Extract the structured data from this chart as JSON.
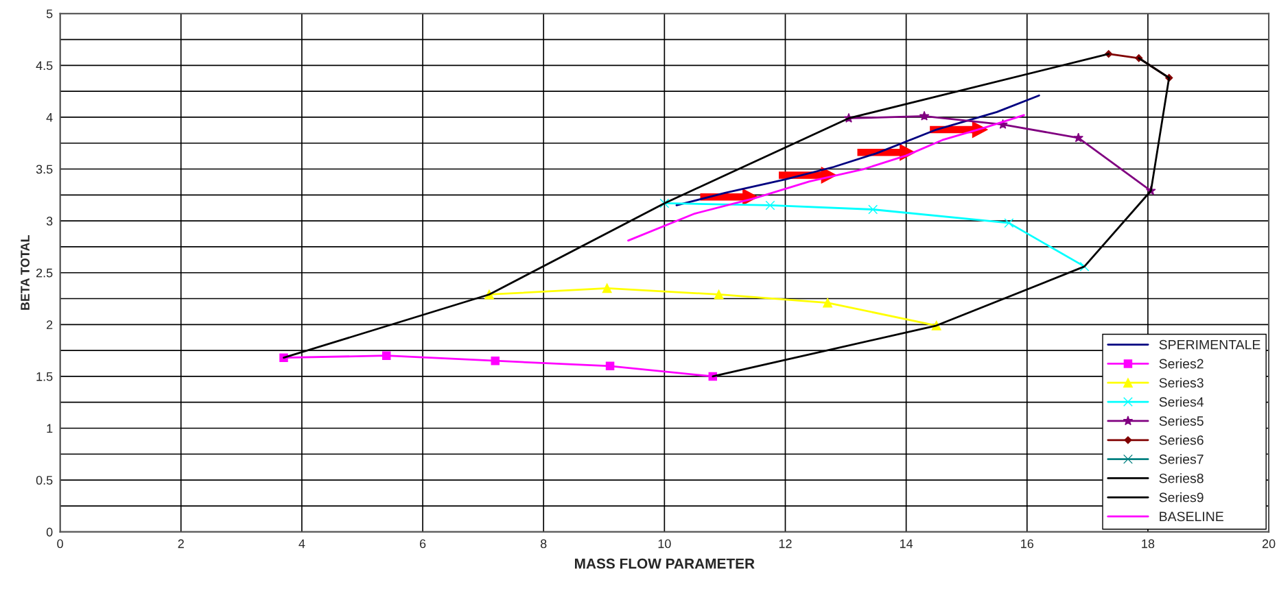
{
  "chart_data": {
    "type": "line",
    "xlabel": "MASS FLOW PARAMETER",
    "ylabel": "BETA TOTAL",
    "xlim": [
      0,
      20
    ],
    "xticks": [
      0,
      2,
      4,
      6,
      8,
      10,
      12,
      14,
      16,
      18,
      20
    ],
    "ylim": [
      0,
      5
    ],
    "yticks": [
      0,
      {
        "value": 0.25,
        "label": null
      },
      0.5,
      {
        "value": 0.75,
        "label": null
      },
      1,
      {
        "value": 1.25,
        "label": null
      },
      1.5,
      {
        "value": 1.75,
        "label": null
      },
      2,
      {
        "value": 2.25,
        "label": null
      },
      2.5,
      {
        "value": 2.75,
        "label": null
      },
      3,
      {
        "value": 3.25,
        "label": null
      },
      3.5,
      {
        "value": 3.75,
        "label": null
      },
      4,
      {
        "value": 4.25,
        "label": null
      },
      4.5,
      {
        "value": 4.75,
        "label": null
      },
      5
    ],
    "grid": true,
    "legend": "bottom right",
    "series": [
      {
        "name": "SPERIMENTALE",
        "color": "#000080",
        "marker": "none",
        "x": [
          10.2,
          11,
          12,
          12.8,
          13.5,
          14.5,
          15.5,
          16.2
        ],
        "values": [
          3.15,
          3.27,
          3.4,
          3.52,
          3.65,
          3.88,
          4.05,
          4.21
        ]
      },
      {
        "name": "Series2",
        "color": "#ff00ff",
        "marker": "square",
        "x": [
          3.7,
          5.4,
          7.2,
          9.1,
          10.8
        ],
        "values": [
          1.68,
          1.7,
          1.65,
          1.6,
          1.5
        ]
      },
      {
        "name": "Series3",
        "color": "#ffff00",
        "marker": "triangle",
        "x": [
          7.1,
          9.05,
          10.9,
          12.7,
          14.5
        ],
        "values": [
          2.29,
          2.35,
          2.29,
          2.21,
          1.99
        ]
      },
      {
        "name": "Series4",
        "color": "#00ffff",
        "marker": "cross",
        "x": [
          10.0,
          11.75,
          13.45,
          15.7,
          16.95
        ],
        "values": [
          3.17,
          3.15,
          3.11,
          2.98,
          2.56
        ]
      },
      {
        "name": "Series5",
        "color": "#800080",
        "marker": "star",
        "x": [
          13.05,
          14.3,
          15.6,
          16.85,
          18.05
        ],
        "values": [
          3.99,
          4.01,
          3.93,
          3.8,
          3.29
        ]
      },
      {
        "name": "Series6",
        "color": "#800000",
        "marker": "diamond",
        "x": [
          17.35,
          17.85,
          18.35
        ],
        "values": [
          4.61,
          4.57,
          4.38
        ]
      },
      {
        "name": "Series7",
        "color": "#008080",
        "marker": "cross"
      },
      {
        "name": "Series8",
        "color": "#000000",
        "marker": "none",
        "x": [
          3.7,
          7.1,
          10.0,
          13.05,
          17.35
        ],
        "values": [
          1.68,
          2.29,
          3.17,
          3.99,
          4.61
        ]
      },
      {
        "name": "Series9",
        "color": "#000000",
        "marker": "none",
        "x": [
          17.85,
          18.35,
          18.05,
          16.95,
          14.5,
          10.8
        ],
        "values": [
          4.57,
          4.38,
          3.29,
          2.56,
          1.99,
          1.5
        ]
      },
      {
        "name": "BASELINE",
        "color": "#ff00ff",
        "marker": "none",
        "x": [
          9.4,
          10.5,
          11.5,
          12.4,
          13.3,
          14.0,
          14.6,
          15.3,
          15.95
        ],
        "values": [
          2.81,
          3.07,
          3.22,
          3.38,
          3.5,
          3.63,
          3.78,
          3.9,
          4.02
        ]
      }
    ]
  }
}
